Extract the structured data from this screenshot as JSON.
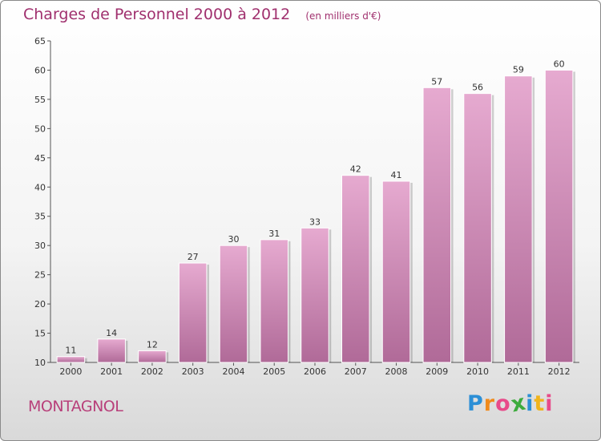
{
  "header": {
    "title": "Charges de Personnel 2000 à 2012",
    "subtitle": "(en milliers d'€)"
  },
  "footer": {
    "location": "MONTAGNOL",
    "logo_letters": [
      "P",
      "r",
      "o",
      "x",
      "i",
      "t",
      "i"
    ],
    "logo_colors": [
      "#2c8fd6",
      "#f08a1c",
      "#e84a8a",
      "#3cab3c",
      "#2c8fd6",
      "#f0b41c",
      "#e84a8a"
    ]
  },
  "colors": {
    "bar_top": "#e6aad0",
    "bar_bottom": "#b06a98",
    "title": "#a0306e"
  },
  "chart_data": {
    "type": "bar",
    "categories": [
      "2000",
      "2001",
      "2002",
      "2003",
      "2004",
      "2005",
      "2006",
      "2007",
      "2008",
      "2009",
      "2010",
      "2011",
      "2012"
    ],
    "values": [
      11,
      14,
      12,
      27,
      30,
      31,
      33,
      42,
      41,
      57,
      56,
      59,
      60
    ],
    "title": "Charges de Personnel 2000 à 2012",
    "subtitle": "(en milliers d'€)",
    "xlabel": "",
    "ylabel": "",
    "ylim": [
      10,
      65
    ],
    "yticks": [
      10,
      15,
      20,
      25,
      30,
      35,
      40,
      45,
      50,
      55,
      60,
      65
    ],
    "grid": false,
    "legend": "none"
  }
}
